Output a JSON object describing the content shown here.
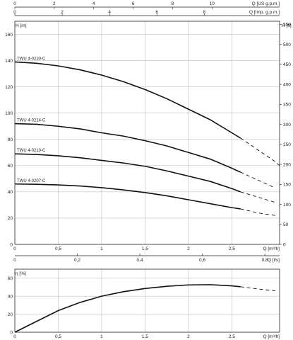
{
  "chart_data": [
    {
      "id": "head",
      "type": "line",
      "y_left_label": "H [m]",
      "y_left_ticks": [
        0,
        20,
        40,
        60,
        80,
        100,
        120,
        140,
        160
      ],
      "y_left_range": [
        0,
        170
      ],
      "y_right_label": "H [ft]",
      "y_right_ticks": [
        0,
        50,
        100,
        150,
        200,
        250,
        300,
        350,
        400,
        450,
        500,
        550
      ],
      "x_bottom_label": "Q [m³/h]",
      "x_bottom_ticks": [
        "0",
        "0,5",
        "1",
        "1,5",
        "2",
        "2,5"
      ],
      "x_bottom_tick_values": [
        0,
        0.5,
        1,
        1.5,
        2,
        2.5
      ],
      "x_range": [
        0,
        3.05
      ],
      "x_ls_label": "Q [l/s]",
      "x_ls_ticks": [
        "0",
        "0,2",
        "0,4",
        "0,6",
        "0,8"
      ],
      "x_ls_tick_values": [
        0,
        0.2,
        0.4,
        0.6,
        0.8
      ],
      "x_top1_label": "Q [US g.p.m.]",
      "x_top1_ticks": [
        "0",
        "2",
        "4",
        "6",
        "8",
        "10"
      ],
      "x_top1_tick_values": [
        0,
        2,
        4,
        6,
        8,
        10
      ],
      "x_top2_label": "Q [Imp. g.p.m.]",
      "x_top2_ticks": [
        "0",
        "2",
        "4",
        "6",
        "8"
      ],
      "x_top2_tick_values": [
        0,
        2,
        4,
        6,
        8
      ],
      "grid": true,
      "series": [
        {
          "name": "TWU 4-0220-C",
          "x": [
            0,
            0.25,
            0.5,
            0.75,
            1,
            1.25,
            1.5,
            1.75,
            2,
            2.25,
            2.5,
            2.6
          ],
          "y": [
            139,
            138,
            136,
            133,
            129,
            124,
            118,
            111,
            103,
            95,
            85,
            81
          ],
          "x_ext": [
            2.6,
            2.8,
            3.0,
            3.05
          ],
          "y_ext": [
            81,
            72,
            63,
            60
          ]
        },
        {
          "name": "TWU 4-0214-C",
          "x": [
            0,
            0.25,
            0.5,
            0.75,
            1,
            1.25,
            1.5,
            1.75,
            2,
            2.25,
            2.5,
            2.6
          ],
          "y": [
            92,
            91.5,
            90,
            88,
            85,
            82.5,
            79,
            75,
            70,
            65,
            58,
            55
          ],
          "x_ext": [
            2.6,
            2.8,
            3.0
          ],
          "y_ext": [
            55,
            49,
            43
          ]
        },
        {
          "name": "TWU 4-0210-C",
          "x": [
            0,
            0.25,
            0.5,
            0.75,
            1,
            1.25,
            1.5,
            1.75,
            2,
            2.25,
            2.5,
            2.6
          ],
          "y": [
            69,
            68.5,
            67.5,
            66,
            64,
            62,
            59.5,
            56,
            52,
            48,
            42.5,
            40
          ],
          "x_ext": [
            2.6,
            2.8,
            3.0
          ],
          "y_ext": [
            40,
            36,
            32
          ]
        },
        {
          "name": "TWU 4-0207-C",
          "x": [
            0,
            0.25,
            0.5,
            0.75,
            1,
            1.25,
            1.5,
            1.75,
            2,
            2.25,
            2.5,
            2.6
          ],
          "y": [
            46,
            45.8,
            45.3,
            44.5,
            43.2,
            41.5,
            39.5,
            37,
            34,
            31,
            28,
            27
          ],
          "x_ext": [
            2.6,
            2.8,
            3.0
          ],
          "y_ext": [
            27,
            24,
            22
          ]
        }
      ]
    },
    {
      "id": "efficiency",
      "type": "line",
      "y_label": "η [%]",
      "y_ticks": [
        0,
        20,
        40,
        60
      ],
      "y_range": [
        0,
        70
      ],
      "x_label": "Q [m³/h]",
      "x_ticks": [
        "0",
        "0,5",
        "1",
        "1,5",
        "2",
        "2,5"
      ],
      "x_tick_values": [
        0,
        0.5,
        1,
        1.5,
        2,
        2.5
      ],
      "x_range": [
        0,
        3.05
      ],
      "grid": true,
      "series": [
        {
          "x": [
            0,
            0.25,
            0.5,
            0.75,
            1,
            1.25,
            1.5,
            1.75,
            2,
            2.25,
            2.5,
            2.6
          ],
          "y": [
            0,
            12,
            24,
            33,
            40,
            45,
            48.5,
            51,
            52.5,
            52.8,
            51.5,
            50.5
          ],
          "x_ext": [
            2.6,
            2.8,
            3.0
          ],
          "y_ext": [
            50.5,
            48,
            46
          ]
        }
      ]
    }
  ]
}
